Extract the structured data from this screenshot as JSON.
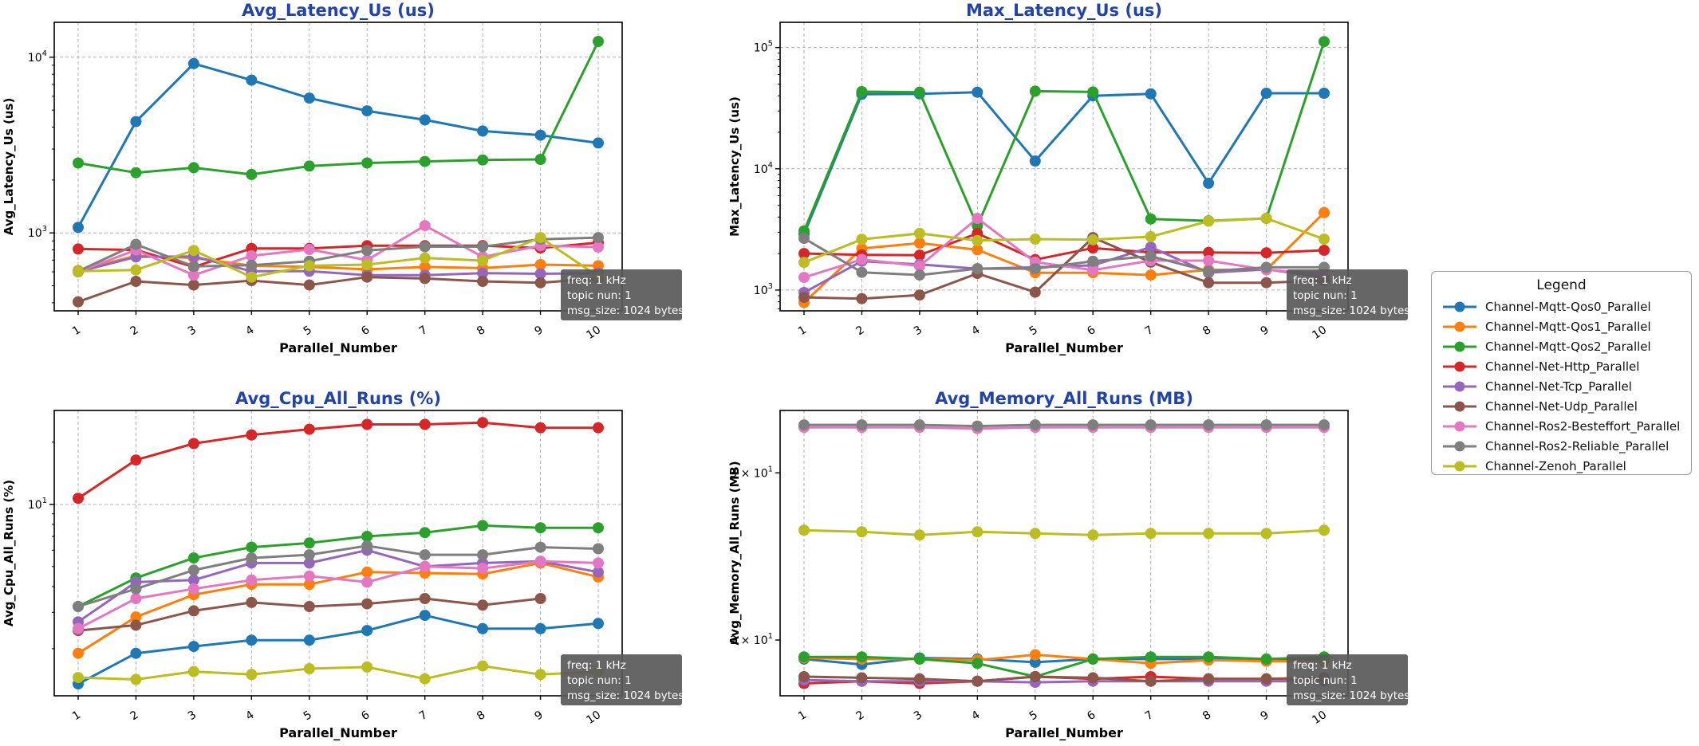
{
  "figure": {
    "xlabel": "Parallel_Number",
    "x_ticks": [
      "1",
      "2",
      "3",
      "4",
      "5",
      "6",
      "7",
      "8",
      "9",
      "10"
    ],
    "title_color": "#2244aa",
    "annotation_lines": [
      "freq: 1 kHz",
      "topic nun: 1",
      "msg_size: 1024 bytes"
    ],
    "annotation_bg": "#595959",
    "annotation_text_color": "#ffffff"
  },
  "legend": {
    "title": "Legend",
    "items": [
      {
        "label": "Channel-Mqtt-Qos0_Parallel",
        "color": "#1f77b4"
      },
      {
        "label": "Channel-Mqtt-Qos1_Parallel",
        "color": "#ff7f0e"
      },
      {
        "label": "Channel-Mqtt-Qos2_Parallel",
        "color": "#2ca02c"
      },
      {
        "label": "Channel-Net-Http_Parallel",
        "color": "#d62728"
      },
      {
        "label": "Channel-Net-Tcp_Parallel",
        "color": "#9467bd"
      },
      {
        "label": "Channel-Net-Udp_Parallel",
        "color": "#8c564b"
      },
      {
        "label": "Channel-Ros2-Besteffort_Parallel",
        "color": "#e377c2"
      },
      {
        "label": "Channel-Ros2-Reliable_Parallel",
        "color": "#7f7f7f"
      },
      {
        "label": "Channel-Zenoh_Parallel",
        "color": "#bcbd22"
      }
    ]
  },
  "chart_data": [
    {
      "type": "line",
      "id": "avg-latency",
      "title": "Avg_Latency_Us  (us)",
      "ylabel": "Avg_Latency_Us (us)",
      "xlabel": "Parallel_Number",
      "yscale": "log",
      "ylim": [
        360,
        15800
      ],
      "grid": true,
      "x": [
        1,
        2,
        3,
        4,
        5,
        6,
        7,
        8,
        9,
        10
      ],
      "yticks": [
        {
          "mult": "",
          "exp": "3",
          "value": 1000,
          "grid": true
        },
        {
          "mult": "",
          "exp": "4",
          "value": 10000,
          "grid": true
        }
      ],
      "series": [
        {
          "name": "Channel-Mqtt-Qos0_Parallel",
          "values": [
            1075,
            4300,
            9200,
            7400,
            5850,
            4950,
            4400,
            3800,
            3600,
            3250
          ]
        },
        {
          "name": "Channel-Mqtt-Qos1_Parallel",
          "values": [
            610,
            740,
            720,
            650,
            640,
            620,
            640,
            630,
            660,
            650
          ]
        },
        {
          "name": "Channel-Mqtt-Qos2_Parallel",
          "values": [
            2500,
            2200,
            2350,
            2150,
            2400,
            2500,
            2550,
            2600,
            2620,
            12300
          ]
        },
        {
          "name": "Channel-Net-Http_Parallel",
          "values": [
            810,
            800,
            640,
            815,
            815,
            845,
            845,
            845,
            820,
            880
          ]
        },
        {
          "name": "Channel-Net-Tcp_Parallel",
          "values": [
            600,
            730,
            735,
            605,
            605,
            575,
            575,
            590,
            585,
            590
          ]
        },
        {
          "name": "Channel-Net-Udp_Parallel",
          "values": [
            405,
            530,
            505,
            535,
            505,
            560,
            550,
            530,
            520,
            550
          ]
        },
        {
          "name": "Channel-Ros2-Besteffort_Parallel",
          "values": [
            600,
            800,
            575,
            740,
            805,
            700,
            1100,
            730,
            845,
            830
          ]
        },
        {
          "name": "Channel-Ros2-Reliable_Parallel",
          "values": [
            605,
            860,
            645,
            655,
            690,
            795,
            835,
            835,
            920,
            940
          ]
        },
        {
          "name": "Channel-Zenoh_Parallel",
          "values": [
            605,
            615,
            795,
            560,
            650,
            660,
            720,
            695,
            940,
            565
          ]
        }
      ]
    },
    {
      "type": "line",
      "id": "max-latency",
      "title": "Max_Latency_Us  (us)",
      "ylabel": "Max_Latency_Us (us)",
      "xlabel": "Parallel_Number",
      "yscale": "log",
      "ylim": [
        674,
        161500
      ],
      "grid": true,
      "x": [
        1,
        2,
        3,
        4,
        5,
        6,
        7,
        8,
        9,
        10
      ],
      "yticks": [
        {
          "mult": "",
          "exp": "3",
          "value": 1000,
          "grid": true
        },
        {
          "mult": "",
          "exp": "4",
          "value": 10000,
          "grid": true
        },
        {
          "mult": "",
          "exp": "5",
          "value": 100000,
          "grid": true
        }
      ],
      "series": [
        {
          "name": "Channel-Mqtt-Qos0_Parallel",
          "values": [
            2900,
            41200,
            41500,
            42800,
            11600,
            40000,
            41500,
            7600,
            42000,
            42000
          ]
        },
        {
          "name": "Channel-Mqtt-Qos1_Parallel",
          "values": [
            790,
            2200,
            2440,
            2150,
            1390,
            1390,
            1330,
            1470,
            1470,
            4350
          ]
        },
        {
          "name": "Channel-Mqtt-Qos2_Parallel",
          "values": [
            3070,
            43300,
            42800,
            3390,
            43700,
            43000,
            3860,
            3720,
            3900,
            112000
          ]
        },
        {
          "name": "Channel-Net-Http_Parallel",
          "values": [
            2000,
            1950,
            1940,
            2930,
            1780,
            2220,
            2040,
            2040,
            2030,
            2130
          ]
        },
        {
          "name": "Channel-Net-Tcp_Parallel",
          "values": [
            955,
            1730,
            1630,
            1500,
            1540,
            1600,
            2260,
            1390,
            1480,
            1280
          ]
        },
        {
          "name": "Channel-Net-Udp_Parallel",
          "values": [
            870,
            850,
            910,
            1370,
            960,
            2710,
            1700,
            1150,
            1150,
            1200
          ]
        },
        {
          "name": "Channel-Ros2-Besteffort_Parallel",
          "values": [
            1270,
            1790,
            1580,
            3900,
            1700,
            1460,
            1750,
            1750,
            1470,
            1370
          ]
        },
        {
          "name": "Channel-Ros2-Reliable_Parallel",
          "values": [
            2670,
            1400,
            1330,
            1500,
            1500,
            1730,
            1900,
            1430,
            1540,
            1540
          ]
        },
        {
          "name": "Channel-Zenoh_Parallel",
          "values": [
            1690,
            2620,
            2930,
            2560,
            2630,
            2600,
            2760,
            3700,
            3900,
            2630
          ]
        }
      ]
    },
    {
      "type": "line",
      "id": "avg-cpu",
      "title": "Avg_Cpu_All_Runs  (%)",
      "ylabel": "Avg_Cpu_All_Runs (%)",
      "xlabel": "Parallel_Number",
      "yscale": "log",
      "ylim": [
        1.183,
        28.5
      ],
      "grid": true,
      "x": [
        1,
        2,
        3,
        4,
        5,
        6,
        7,
        8,
        9,
        10
      ],
      "yticks": [
        {
          "mult": "",
          "exp": "1",
          "value": 10,
          "grid": true
        }
      ],
      "series": [
        {
          "name": "Channel-Mqtt-Qos0_Parallel",
          "values": [
            1.35,
            1.9,
            2.05,
            2.2,
            2.2,
            2.45,
            2.9,
            2.5,
            2.5,
            2.65
          ]
        },
        {
          "name": "Channel-Mqtt-Qos1_Parallel",
          "values": [
            1.9,
            2.85,
            3.65,
            4.1,
            4.1,
            4.7,
            4.65,
            4.6,
            5.2,
            4.45
          ]
        },
        {
          "name": "Channel-Mqtt-Qos2_Parallel",
          "values": [
            3.2,
            4.4,
            5.5,
            6.2,
            6.5,
            7.0,
            7.3,
            7.9,
            7.7,
            7.7
          ]
        },
        {
          "name": "Channel-Net-Http_Parallel",
          "values": [
            10.7,
            16.4,
            19.7,
            21.7,
            23.1,
            24.4,
            24.4,
            24.9,
            23.5,
            23.5
          ]
        },
        {
          "name": "Channel-Net-Tcp_Parallel",
          "values": [
            2.7,
            4.2,
            4.3,
            5.2,
            5.2,
            6.0,
            5.0,
            5.2,
            5.3,
            4.7
          ]
        },
        {
          "name": "Channel-Net-Udp_Parallel",
          "values": [
            2.45,
            2.6,
            3.05,
            3.35,
            3.2,
            3.3,
            3.5,
            3.25,
            3.5,
            null
          ]
        },
        {
          "name": "Channel-Ros2-Besteffort_Parallel",
          "values": [
            2.5,
            3.5,
            3.9,
            4.3,
            4.5,
            4.2,
            5.0,
            4.9,
            5.3,
            5.2
          ]
        },
        {
          "name": "Channel-Ros2-Reliable_Parallel",
          "values": [
            3.2,
            3.9,
            4.8,
            5.5,
            5.7,
            6.3,
            5.7,
            5.7,
            6.2,
            6.1
          ]
        },
        {
          "name": "Channel-Zenoh_Parallel",
          "values": [
            1.45,
            1.42,
            1.55,
            1.5,
            1.6,
            1.63,
            1.43,
            1.65,
            1.5,
            1.55
          ]
        }
      ]
    },
    {
      "type": "line",
      "id": "avg-memory",
      "title": "Avg_Memory_All_Runs  (MB)",
      "ylabel": "Avg_Memory_All_Runs (MB)",
      "xlabel": "Parallel_Number",
      "yscale": "log",
      "ylim": [
        17.47,
        34.9
      ],
      "grid": true,
      "x": [
        1,
        2,
        3,
        4,
        5,
        6,
        7,
        8,
        9,
        10
      ],
      "yticks": [
        {
          "mult": "2",
          "exp": "1",
          "value": 20,
          "grid": false
        },
        {
          "mult": "3",
          "exp": "1",
          "value": 30,
          "grid": false
        }
      ],
      "series": [
        {
          "name": "Channel-Mqtt-Qos0_Parallel",
          "values": [
            19.1,
            18.85,
            19.15,
            19.1,
            18.95,
            19.1,
            19.1,
            19.1,
            19.0,
            19.1
          ]
        },
        {
          "name": "Channel-Mqtt-Qos1_Parallel",
          "values": [
            19.15,
            19.1,
            19.1,
            19.05,
            19.3,
            19.1,
            18.9,
            19.05,
            19.0,
            19.0
          ]
        },
        {
          "name": "Channel-Mqtt-Qos2_Parallel",
          "values": [
            19.2,
            19.2,
            19.1,
            18.9,
            18.3,
            19.1,
            19.2,
            19.2,
            19.1,
            19.2
          ]
        },
        {
          "name": "Channel-Net-Http_Parallel",
          "values": [
            18.0,
            18.1,
            18.0,
            18.1,
            18.3,
            18.2,
            18.3,
            18.2,
            18.2,
            18.25
          ]
        },
        {
          "name": "Channel-Net-Tcp_Parallel",
          "values": [
            18.15,
            18.1,
            18.1,
            18.1,
            18.05,
            18.1,
            18.1,
            18.1,
            18.1,
            18.1
          ]
        },
        {
          "name": "Channel-Net-Udp_Parallel",
          "values": [
            18.3,
            18.25,
            18.2,
            18.1,
            18.3,
            18.25,
            18.1,
            18.2,
            18.2,
            18.2
          ]
        },
        {
          "name": "Channel-Ros2-Besteffort_Parallel",
          "values": [
            33.5,
            33.5,
            33.5,
            33.4,
            33.5,
            33.5,
            33.5,
            33.5,
            33.5,
            33.5
          ]
        },
        {
          "name": "Channel-Ros2-Reliable_Parallel",
          "values": [
            33.7,
            33.7,
            33.7,
            33.6,
            33.7,
            33.7,
            33.7,
            33.7,
            33.7,
            33.7
          ]
        },
        {
          "name": "Channel-Zenoh_Parallel",
          "values": [
            26.1,
            26.0,
            25.8,
            26.0,
            25.9,
            25.8,
            25.9,
            25.9,
            25.9,
            26.1
          ]
        }
      ]
    }
  ]
}
